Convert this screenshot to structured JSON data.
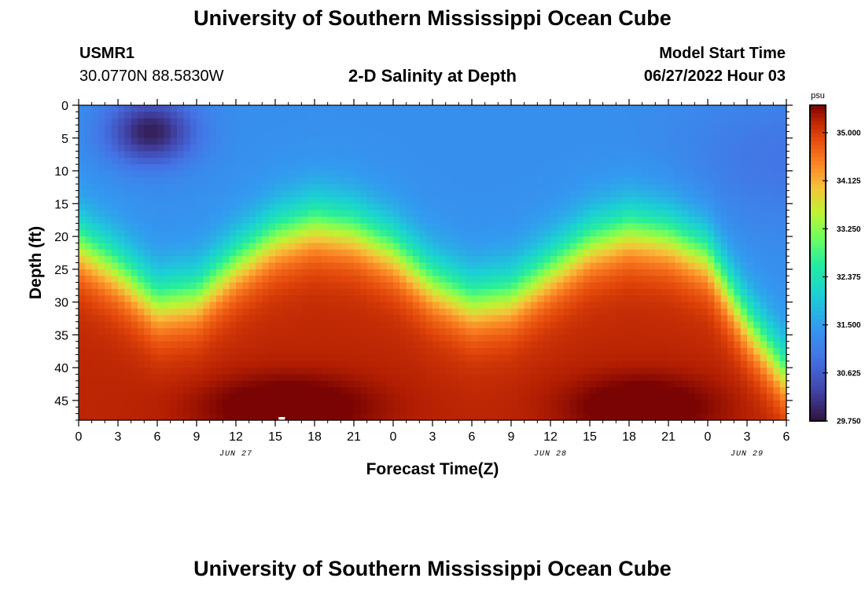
{
  "page": {
    "title_top": "University of Southern Mississippi Ocean Cube",
    "title_bottom": "University of Southern Mississippi Ocean Cube",
    "station_id": "USMR1",
    "station_coords": "30.0770N  88.5830W",
    "plot_title": "2-D Salinity at Depth",
    "model_start_label": "Model Start Time",
    "model_start_value": "06/27/2022 Hour 03"
  },
  "colors": {
    "background": "#ffffff",
    "axis": "#000000",
    "marker": "#ffffff"
  },
  "chart_data": {
    "type": "heatmap",
    "title": "2-D Salinity at Depth",
    "xlabel": "Forecast Time(Z)",
    "ylabel": "Depth (ft)",
    "x_unit": "hours since Jun 27 00Z",
    "xlim": [
      0,
      54
    ],
    "ylim": [
      0,
      48
    ],
    "y_inverted": true,
    "x_ticks": [
      0,
      3,
      6,
      9,
      12,
      15,
      18,
      21,
      24,
      27,
      30,
      33,
      36,
      39,
      42,
      45,
      48,
      51,
      54
    ],
    "x_tick_labels": [
      "0",
      "3",
      "6",
      "9",
      "12",
      "15",
      "18",
      "21",
      "0",
      "3",
      "6",
      "9",
      "12",
      "15",
      "18",
      "21",
      "0",
      "3",
      "6"
    ],
    "y_ticks": [
      0,
      5,
      10,
      15,
      20,
      25,
      30,
      35,
      40,
      45
    ],
    "y_tick_labels": [
      "0",
      "5",
      "10",
      "15",
      "20",
      "25",
      "30",
      "35",
      "40",
      "45"
    ],
    "date_labels": [
      {
        "x": 12,
        "text": "JUN 27"
      },
      {
        "x": 36,
        "text": "JUN 28"
      },
      {
        "x": 51,
        "text": "JUN 29"
      }
    ],
    "colorbar": {
      "unit": "psu",
      "min": 29.75,
      "max": 35.5,
      "ticks": [
        35.0,
        34.125,
        33.25,
        32.375,
        31.5,
        30.625,
        29.75
      ],
      "tick_labels": [
        "35.000",
        "34.125",
        "33.250",
        "32.375",
        "31.500",
        "30.625",
        "29.750"
      ]
    },
    "field_description": {
      "surface_salinity_psu": 31.3,
      "bottom_salinity_psu": 35.2,
      "fresh_pocket": {
        "x": 5.5,
        "depth": 4,
        "min_salinity": 29.9
      },
      "halocline_depth_ft": [
        [
          0,
          21
        ],
        [
          3,
          25
        ],
        [
          6,
          30
        ],
        [
          9,
          29
        ],
        [
          12,
          24
        ],
        [
          15,
          20
        ],
        [
          18,
          18
        ],
        [
          21,
          19
        ],
        [
          24,
          22
        ],
        [
          27,
          27
        ],
        [
          30,
          30
        ],
        [
          33,
          29
        ],
        [
          36,
          25
        ],
        [
          39,
          21
        ],
        [
          42,
          19
        ],
        [
          45,
          20
        ],
        [
          48,
          23
        ],
        [
          51,
          33
        ],
        [
          54,
          41
        ]
      ],
      "marker": {
        "x": 15.5,
        "depth": 48
      }
    }
  }
}
